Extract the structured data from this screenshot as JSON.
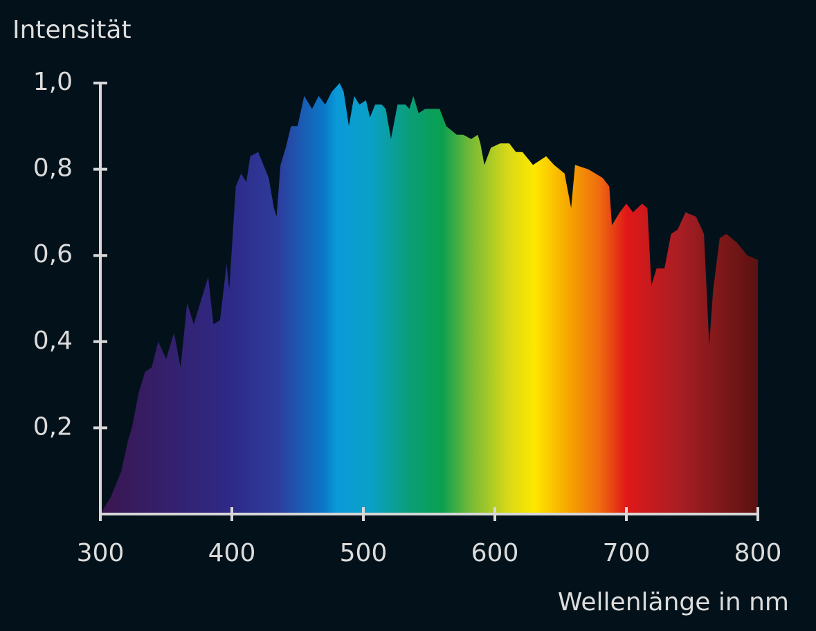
{
  "chart_data": {
    "type": "area",
    "y_label": "Intensität",
    "x_label": "Wellenlänge in nm",
    "xlim": [
      300,
      800
    ],
    "xticks": [
      300,
      400,
      500,
      600,
      700,
      800
    ],
    "ylim": [
      0,
      1
    ],
    "yticks": [
      {
        "value": 0.2,
        "label": "0,2"
      },
      {
        "value": 0.4,
        "label": "0,4"
      },
      {
        "value": 0.6,
        "label": "0,6"
      },
      {
        "value": 0.8,
        "label": "0,8"
      },
      {
        "value": 1.0,
        "label": "1,0"
      }
    ],
    "grid": false,
    "x": [
      300,
      308,
      316,
      321,
      324,
      329,
      334,
      339,
      344,
      350,
      356,
      361,
      366,
      371,
      376,
      382,
      386,
      391,
      396,
      398,
      403,
      407,
      411,
      414,
      420,
      424,
      428,
      432,
      434,
      437,
      441,
      445,
      450,
      455,
      461,
      466,
      471,
      476,
      482,
      485,
      489,
      493,
      497,
      502,
      505,
      509,
      514,
      517,
      521,
      526,
      532,
      535,
      538,
      542,
      547,
      553,
      558,
      563,
      571,
      576,
      582,
      587,
      589,
      592,
      597,
      604,
      611,
      616,
      621,
      629,
      634,
      639,
      645,
      653,
      658,
      661,
      671,
      682,
      687,
      689,
      695,
      700,
      705,
      712,
      716,
      719,
      723,
      729,
      734,
      739,
      745,
      753,
      759,
      763,
      766,
      771,
      776,
      784,
      792,
      800
    ],
    "values": [
      0,
      0.04,
      0.1,
      0.17,
      0.2,
      0.28,
      0.33,
      0.34,
      0.4,
      0.36,
      0.42,
      0.34,
      0.49,
      0.44,
      0.49,
      0.55,
      0.44,
      0.45,
      0.58,
      0.52,
      0.76,
      0.79,
      0.77,
      0.83,
      0.84,
      0.81,
      0.78,
      0.71,
      0.69,
      0.81,
      0.85,
      0.9,
      0.9,
      0.97,
      0.94,
      0.97,
      0.95,
      0.98,
      1.0,
      0.98,
      0.9,
      0.97,
      0.95,
      0.96,
      0.92,
      0.95,
      0.95,
      0.94,
      0.87,
      0.95,
      0.95,
      0.94,
      0.97,
      0.93,
      0.94,
      0.94,
      0.94,
      0.9,
      0.88,
      0.88,
      0.87,
      0.88,
      0.86,
      0.81,
      0.85,
      0.86,
      0.86,
      0.84,
      0.84,
      0.81,
      0.82,
      0.83,
      0.81,
      0.79,
      0.71,
      0.81,
      0.8,
      0.78,
      0.76,
      0.67,
      0.7,
      0.72,
      0.7,
      0.72,
      0.71,
      0.53,
      0.57,
      0.57,
      0.65,
      0.66,
      0.7,
      0.69,
      0.65,
      0.39,
      0.52,
      0.64,
      0.65,
      0.63,
      0.6,
      0.59
    ]
  }
}
